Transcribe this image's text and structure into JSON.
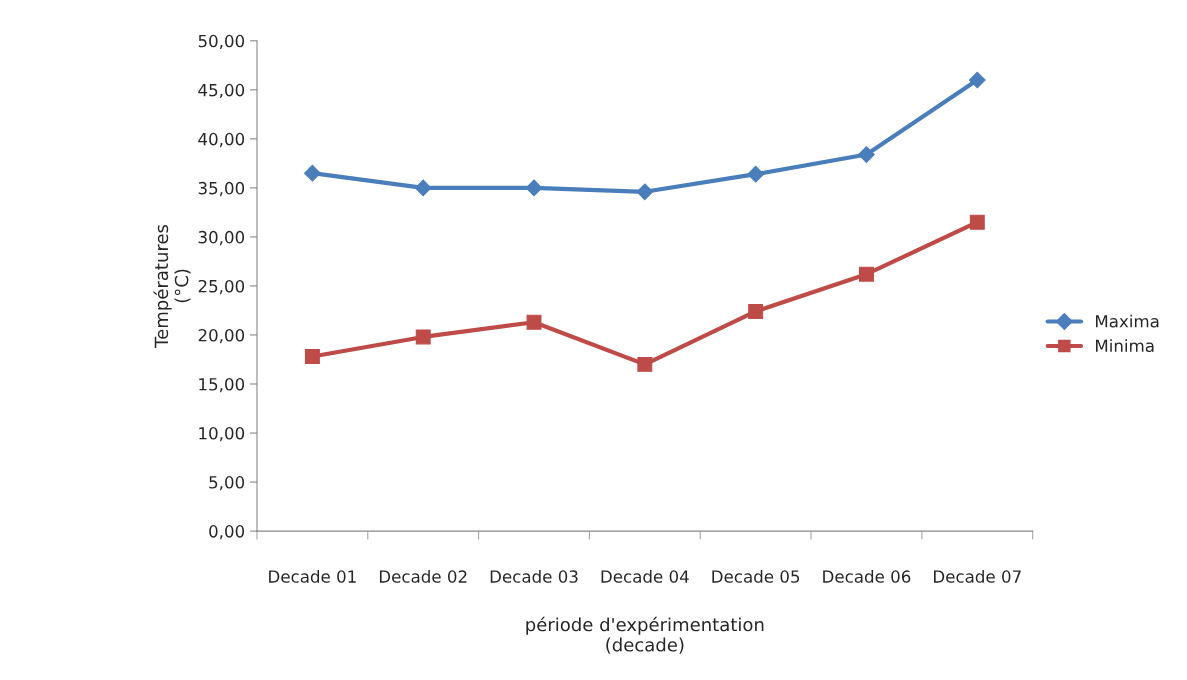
{
  "chart_data": {
    "type": "line",
    "xlabel": "période d'expérimentation\n(decade)",
    "ylabel": "Températures\n(°C)",
    "categories": [
      "Decade 01",
      "Decade 02",
      "Decade 03",
      "Decade 04",
      "Decade 05",
      "Decade 06",
      "Decade 07"
    ],
    "series": [
      {
        "name": "Maxima",
        "color": "#4a7ebb",
        "marker": "diamond",
        "values": [
          36.5,
          35.0,
          35.0,
          34.6,
          36.4,
          38.4,
          46.0
        ]
      },
      {
        "name": "Minima",
        "color": "#be4b48",
        "marker": "square",
        "values": [
          17.8,
          19.8,
          21.3,
          17.0,
          22.4,
          26.2,
          31.5
        ]
      }
    ],
    "ylim": [
      0,
      50
    ],
    "yticks": [
      {
        "value": 0,
        "label": "0,00"
      },
      {
        "value": 5,
        "label": "5,00"
      },
      {
        "value": 10,
        "label": "10,00"
      },
      {
        "value": 15,
        "label": "15,00"
      },
      {
        "value": 20,
        "label": "20,00"
      },
      {
        "value": 25,
        "label": "25,00"
      },
      {
        "value": 30,
        "label": "30,00"
      },
      {
        "value": 35,
        "label": "35,00"
      },
      {
        "value": 40,
        "label": "40,00"
      },
      {
        "value": 45,
        "label": "45,00"
      },
      {
        "value": 50,
        "label": "50,00"
      }
    ],
    "grid": false,
    "legend": "right",
    "line_style": "solid"
  }
}
